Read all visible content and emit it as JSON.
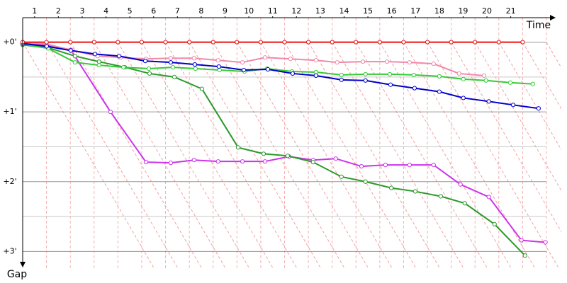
{
  "chart_data": {
    "type": "gap",
    "x_label": "Time",
    "y_label": "Gap",
    "xlim": [
      0,
      22
    ],
    "ylim": [
      -0.3,
      3.25
    ],
    "xticks": [
      {
        "value": 0.5,
        "label": "1"
      },
      {
        "value": 1.5,
        "label": "2"
      },
      {
        "value": 2.5,
        "label": "3"
      },
      {
        "value": 3.5,
        "label": "4"
      },
      {
        "value": 4.5,
        "label": "5"
      },
      {
        "value": 5.5,
        "label": "6"
      },
      {
        "value": 6.5,
        "label": "7"
      },
      {
        "value": 7.5,
        "label": "8"
      },
      {
        "value": 8.5,
        "label": "9"
      },
      {
        "value": 9.5,
        "label": "10"
      },
      {
        "value": 10.5,
        "label": "11"
      },
      {
        "value": 11.5,
        "label": "12"
      },
      {
        "value": 12.5,
        "label": "13"
      },
      {
        "value": 13.5,
        "label": "14"
      },
      {
        "value": 14.5,
        "label": "15"
      },
      {
        "value": 15.5,
        "label": "16"
      },
      {
        "value": 16.5,
        "label": "17"
      },
      {
        "value": 17.5,
        "label": "18"
      },
      {
        "value": 18.5,
        "label": "19"
      },
      {
        "value": 19.5,
        "label": "20"
      },
      {
        "value": 20.5,
        "label": "21"
      }
    ],
    "yticks": [
      {
        "value": 0,
        "label": "+0'"
      },
      {
        "value": 1,
        "label": "+1'"
      },
      {
        "value": 2,
        "label": "+2'"
      },
      {
        "value": 3,
        "label": "+3'"
      }
    ],
    "grid": true,
    "series": [
      {
        "color": "#e0a0ff",
        "x": [],
        "values": []
      },
      {
        "color": "#cc33ee",
        "x": [
          0,
          1.01,
          2.02,
          3.69,
          5.18,
          6.22,
          7.2,
          8.21,
          9.23,
          10.18,
          11.19,
          12.2,
          13.15,
          14.23,
          15.24,
          16.25,
          17.26,
          18.39,
          19.58,
          20.95,
          21.96
        ],
        "values": [
          0.02,
          0.04,
          0.11,
          1.0,
          1.72,
          1.73,
          1.69,
          1.71,
          1.71,
          1.71,
          1.64,
          1.69,
          1.67,
          1.78,
          1.76,
          1.76,
          1.76,
          2.04,
          2.22,
          2.84,
          2.87
        ]
      },
      {
        "color": "#2a9a2a",
        "x": [
          0,
          1.07,
          2.2,
          3.21,
          4.29,
          5.33,
          6.37,
          7.53,
          9.05,
          10.12,
          11.13,
          12.2,
          13.39,
          14.4,
          15.48,
          16.49,
          17.56,
          18.57,
          19.82,
          21.1
        ],
        "values": [
          0.04,
          0.08,
          0.2,
          0.28,
          0.36,
          0.45,
          0.5,
          0.67,
          1.51,
          1.6,
          1.63,
          1.72,
          1.93,
          2.0,
          2.09,
          2.14,
          2.21,
          2.31,
          2.61,
          3.06
        ]
      },
      {
        "color": "#f088aa",
        "x": [
          0,
          1.01,
          2.11,
          3.15,
          4.11,
          5.18,
          6.22,
          7.2,
          8.21,
          9.23,
          10.18,
          11.25,
          12.32,
          13.21,
          14.29,
          15.3,
          16.25,
          17.26,
          18.33,
          19.38
        ],
        "values": [
          0,
          0.03,
          0.12,
          0.2,
          0.22,
          0.24,
          0.23,
          0.23,
          0.26,
          0.29,
          0.22,
          0.24,
          0.26,
          0.29,
          0.28,
          0.28,
          0.29,
          0.31,
          0.45,
          0.48
        ]
      },
      {
        "color": "#33cc33",
        "x": [
          0,
          1.07,
          2.2,
          3.21,
          4.23,
          5.3,
          6.31,
          7.26,
          8.27,
          9.32,
          10.27,
          11.31,
          12.32,
          13.39,
          14.4,
          15.42,
          16.43,
          17.5,
          18.51,
          19.46,
          20.48,
          21.43
        ],
        "values": [
          0.03,
          0.09,
          0.29,
          0.33,
          0.36,
          0.38,
          0.36,
          0.38,
          0.4,
          0.42,
          0.38,
          0.42,
          0.43,
          0.47,
          0.46,
          0.46,
          0.47,
          0.49,
          0.53,
          0.55,
          0.58,
          0.6
        ]
      },
      {
        "color": "#0000cc",
        "x": [
          0,
          1.01,
          2.02,
          3.04,
          4.05,
          5.15,
          6.22,
          7.23,
          8.24,
          9.29,
          10.3,
          11.34,
          12.32,
          13.39,
          14.4,
          15.45,
          16.46,
          17.5,
          18.51,
          19.58,
          20.6,
          21.67
        ],
        "values": [
          0.02,
          0.06,
          0.12,
          0.17,
          0.2,
          0.27,
          0.29,
          0.32,
          0.35,
          0.4,
          0.39,
          0.45,
          0.48,
          0.54,
          0.55,
          0.61,
          0.66,
          0.71,
          0.8,
          0.85,
          0.9,
          0.95
        ]
      },
      {
        "color": "#ee1111",
        "x": [
          0,
          1,
          2,
          3,
          4,
          5,
          6,
          7,
          8,
          9,
          10,
          11,
          12,
          13,
          14,
          15,
          16,
          17,
          18,
          19,
          20,
          21
        ],
        "values": [
          0,
          0,
          0,
          0,
          0,
          0,
          0,
          0,
          0,
          0,
          0,
          0,
          0,
          0,
          0,
          0,
          0,
          0,
          0,
          0,
          0,
          0
        ]
      }
    ]
  }
}
